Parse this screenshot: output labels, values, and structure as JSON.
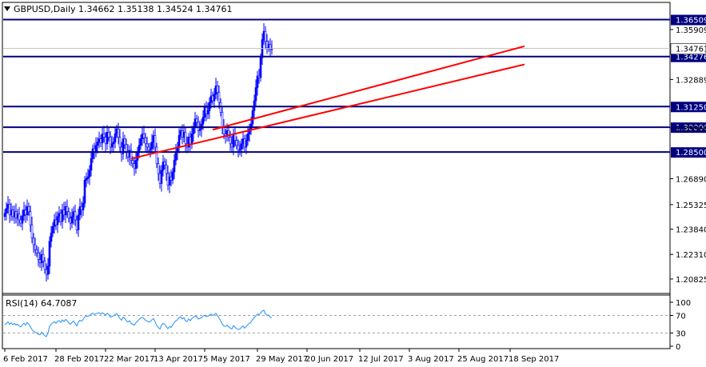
{
  "chart_data": {
    "type": "candlestick",
    "symbol_line": "GBPUSD,Daily  1.34662 1.35138 1.34524 1.34761",
    "price_axis": {
      "range": [
        1.2,
        1.375
      ],
      "ticks": [
        "1.35909",
        "1.32889",
        "1.29960",
        "1.26890",
        "1.25325",
        "1.23840",
        "1.22310",
        "1.20825"
      ],
      "tick_values": [
        1.35909,
        1.32889,
        1.2996,
        1.2689,
        1.25325,
        1.2384,
        1.2231,
        1.20825
      ]
    },
    "levels": [
      {
        "label": "1.36509",
        "value": 1.36509,
        "color": "#000080"
      },
      {
        "label": "1.34276",
        "value": 1.34276,
        "color": "#000080"
      },
      {
        "label": "1.31250",
        "value": 1.3125,
        "color": "#000080"
      },
      {
        "label": "1.30000",
        "value": 1.3,
        "color": "#000080"
      },
      {
        "label": "1.28500",
        "value": 1.285,
        "color": "#000080"
      }
    ],
    "current_price": {
      "label": "1.34761",
      "value": 1.34761
    },
    "channel_lines": [
      {
        "from": {
          "bar": 79,
          "price": 1.281
        },
        "to": {
          "bar": 325,
          "price": 1.338
        },
        "color": "#ff0000"
      },
      {
        "from": {
          "bar": 130,
          "price": 1.2985
        },
        "to": {
          "bar": 325,
          "price": 1.349
        },
        "color": "#ff0000"
      }
    ],
    "x_labels": [
      "6 Feb 2017",
      "28 Feb 2017",
      "22 Mar 2017",
      "13 Apr 2017",
      "5 May 2017",
      "29 May 2017",
      "20 Jun 2017",
      "12 Jul 2017",
      "3 Aug 2017",
      "25 Aug 2017",
      "18 Sep 2017"
    ],
    "closes": [
      1.248,
      1.251,
      1.2535,
      1.247,
      1.25,
      1.246,
      1.249,
      1.245,
      1.2475,
      1.244,
      1.242,
      1.2465,
      1.25,
      1.247,
      1.252,
      1.249,
      1.241,
      1.233,
      1.229,
      1.226,
      1.224,
      1.22,
      1.218,
      1.223,
      1.219,
      1.214,
      1.211,
      1.216,
      1.231,
      1.236,
      1.24,
      1.244,
      1.241,
      1.246,
      1.248,
      1.243,
      1.25,
      1.247,
      1.252,
      1.249,
      1.245,
      1.242,
      1.246,
      1.249,
      1.244,
      1.238,
      1.247,
      1.252,
      1.25,
      1.254,
      1.268,
      1.269,
      1.27,
      1.274,
      1.281,
      1.287,
      1.285,
      1.289,
      1.291,
      1.293,
      1.2905,
      1.296,
      1.294,
      1.29,
      1.297,
      1.294,
      1.288,
      1.29,
      1.291,
      1.296,
      1.299,
      1.294,
      1.288,
      1.284,
      1.293,
      1.2895,
      1.285,
      1.282,
      1.286,
      1.28,
      1.278,
      1.275,
      1.28,
      1.285,
      1.289,
      1.293,
      1.296,
      1.2935,
      1.29,
      1.288,
      1.286,
      1.287,
      1.291,
      1.295,
      1.288,
      1.278,
      1.272,
      1.266,
      1.274,
      1.279,
      1.277,
      1.272,
      1.265,
      1.27,
      1.268,
      1.273,
      1.28,
      1.285,
      1.288,
      1.295,
      1.298,
      1.294,
      1.297,
      1.29,
      1.288,
      1.294,
      1.29,
      1.296,
      1.3,
      1.305,
      1.303,
      1.298,
      1.299,
      1.302,
      1.306,
      1.312,
      1.308,
      1.31,
      1.315,
      1.319,
      1.316,
      1.32,
      1.325,
      1.321,
      1.315,
      1.309,
      1.3,
      1.296,
      1.295,
      1.298,
      1.294,
      1.29,
      1.288,
      1.296,
      1.292,
      1.289,
      1.286,
      1.287,
      1.29,
      1.293,
      1.288,
      1.292,
      1.296,
      1.299,
      1.302,
      1.31,
      1.316,
      1.324,
      1.331,
      1.33,
      1.342,
      1.353,
      1.358,
      1.352,
      1.348,
      1.35,
      1.347,
      1.3476
    ],
    "rsi": {
      "label": "RSI(14) 64.7087",
      "ticks": [
        "100",
        "70",
        "30",
        "0"
      ],
      "tick_values": [
        100,
        70,
        30,
        0
      ],
      "levels": [
        70,
        30
      ],
      "values": [
        48,
        52,
        55,
        50,
        53,
        49,
        52,
        48,
        50,
        46,
        44,
        49,
        52,
        48,
        54,
        50,
        44,
        38,
        34,
        32,
        30,
        27,
        26,
        32,
        28,
        24,
        22,
        30,
        45,
        50,
        53,
        56,
        52,
        57,
        58,
        54,
        60,
        56,
        61,
        58,
        53,
        50,
        54,
        57,
        52,
        46,
        55,
        59,
        57,
        61,
        67,
        68,
        68,
        70,
        73,
        75,
        72,
        74,
        75,
        76,
        73,
        76,
        74,
        70,
        75,
        72,
        66,
        68,
        69,
        72,
        74,
        69,
        63,
        59,
        66,
        63,
        58,
        55,
        58,
        52,
        50,
        48,
        53,
        57,
        61,
        64,
        66,
        63,
        59,
        57,
        55,
        56,
        60,
        63,
        56,
        47,
        43,
        39,
        48,
        52,
        50,
        45,
        40,
        45,
        43,
        48,
        54,
        58,
        60,
        65,
        67,
        62,
        65,
        58,
        56,
        62,
        58,
        63,
        66,
        69,
        67,
        62,
        63,
        65,
        68,
        71,
        67,
        68,
        71,
        73,
        70,
        72,
        75,
        70,
        64,
        58,
        50,
        46,
        45,
        48,
        44,
        41,
        39,
        47,
        43,
        40,
        38,
        39,
        43,
        46,
        41,
        45,
        49,
        52,
        55,
        61,
        65,
        69,
        73,
        72,
        76,
        80,
        82,
        74,
        70,
        71,
        66,
        64.7
      ]
    }
  }
}
